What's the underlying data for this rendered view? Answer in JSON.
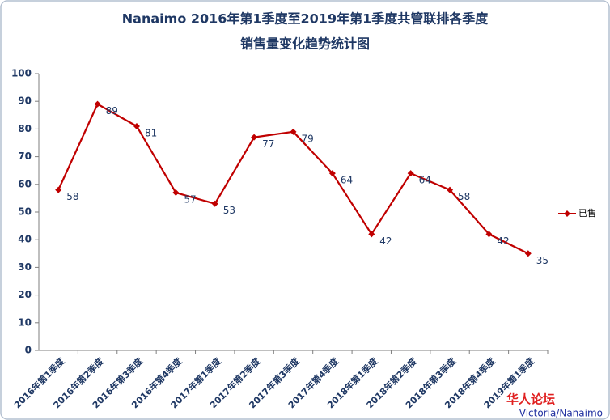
{
  "chart_data": {
    "type": "line",
    "title": "Nanaimo 2016年第1季度至2019年第1季度共管联排各季度",
    "subtitle": "销售量变化趋势统计图",
    "categories": [
      "2016年第1季度",
      "2016年第2季度",
      "2016年第3季度",
      "2016年第4季度",
      "2017年第1季度",
      "2017年第2季度",
      "2017年第3季度",
      "2017年第4季度",
      "2018年第1季度",
      "2018年第2季度",
      "2018年第3季度",
      "2018年第4季度",
      "2019年第1季度"
    ],
    "series": [
      {
        "name": "已售",
        "color": "#c00000",
        "values": [
          58,
          89,
          81,
          57,
          53,
          77,
          79,
          64,
          42,
          64,
          58,
          42,
          35
        ]
      }
    ],
    "ylim": [
      0,
      100
    ],
    "yticks": [
      0,
      10,
      20,
      30,
      40,
      50,
      60,
      70,
      80,
      90,
      100
    ],
    "legend": "right",
    "watermark": [
      "华人论坛",
      "Victoria/Nanaimo"
    ]
  }
}
